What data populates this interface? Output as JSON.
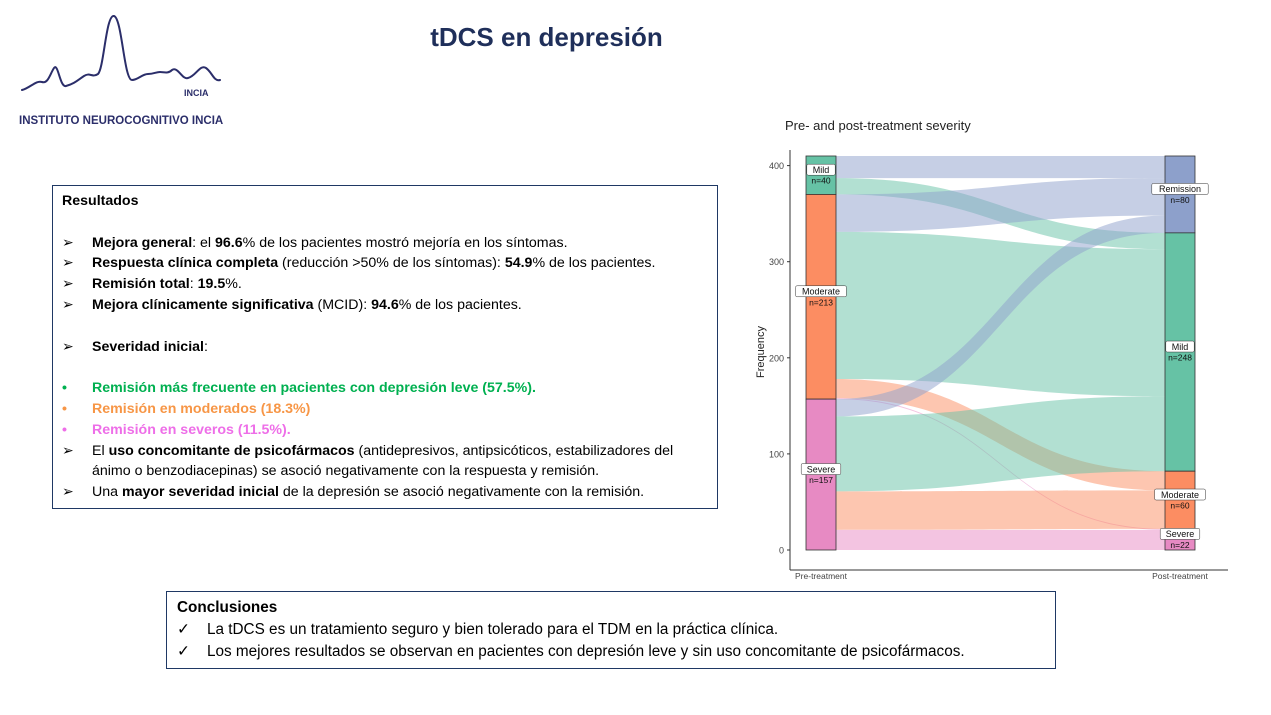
{
  "logo": {
    "abbr": "INCIA",
    "name": "INSTITUTO NEUROCOGNITIVO INCIA",
    "color": "#2b2e6a"
  },
  "slide_title": "tDCS en depresión",
  "results": {
    "heading": "Resultados",
    "items": [
      {
        "b1": "Mejora general",
        "t1": ": el ",
        "b2": "96.6",
        "t2": "% de los pacientes mostró mejoría en los síntomas."
      },
      {
        "b1": "Respuesta clínica completa",
        "t1": " (reducción >50% de los síntomas): ",
        "b2": "54.9",
        "t2": "% de los pacientes."
      },
      {
        "b1": "Remisión total",
        "t1": ": ",
        "b2": "19.5",
        "t2": "%."
      },
      {
        "b1": "Mejora clínicamente significativa",
        "t1": " (MCID): ",
        "b2": "94.6",
        "t2": "% de los pacientes."
      }
    ],
    "severity_heading": "Severidad inicial",
    "severity_colon": ":",
    "sev_items": [
      "Remisión más frecuente en pacientes con depresión leve (57.5%).",
      "Remisión en moderados (18.3%)",
      "Remisión en severos (11.5%)."
    ],
    "psy": {
      "t1": "El ",
      "b1": "uso concomitante de psicofármacos",
      "t2": " (antidepresivos, antipsicóticos, estabilizadores del ánimo o benzodiacepinas) se asoció negativamente con la respuesta y remisión."
    },
    "sev_neg": {
      "t1": "Una ",
      "b1": "mayor severidad inicial",
      "t2": " de la depresión se asoció negativamente con la remisión."
    }
  },
  "conclusions": {
    "heading": "Conclusiones",
    "items": [
      "La tDCS es un tratamiento seguro y bien tolerado para el TDM en la práctica clínica.",
      "Los mejores resultados se observan en pacientes con depresión leve y sin uso concomitante de psicofármacos."
    ]
  },
  "chart_data": {
    "type": "alluvial",
    "title": "Pre- and post-treatment severity",
    "ylabel": "Frequency",
    "xlabel": "",
    "ylim": [
      0,
      410
    ],
    "yticks": [
      0,
      100,
      200,
      300,
      400
    ],
    "axes": [
      "Pre-treatment",
      "Post-treatment"
    ],
    "pre": [
      {
        "name": "Mild",
        "n": 40,
        "n_label": "n=40",
        "color": "#66c2a5"
      },
      {
        "name": "Moderate",
        "n": 213,
        "n_label": "n=213",
        "color": "#fc8d62"
      },
      {
        "name": "Severe",
        "n": 157,
        "n_label": "n=157",
        "color": "#e78ac3"
      }
    ],
    "post": [
      {
        "name": "Remission",
        "n": 80,
        "n_label": "n=80",
        "color": "#8da0cb"
      },
      {
        "name": "Mild",
        "n": 248,
        "n_label": "n=248",
        "color": "#66c2a5"
      },
      {
        "name": "Moderate",
        "n": 60,
        "n_label": "n=60",
        "color": "#fc8d62"
      },
      {
        "name": "Severe",
        "n": 22,
        "n_label": "n=22",
        "color": "#e78ac3"
      }
    ],
    "flows": [
      {
        "from": "Mild",
        "to": "Remission",
        "value": 23
      },
      {
        "from": "Mild",
        "to": "Mild",
        "value": 17
      },
      {
        "from": "Moderate",
        "to": "Remission",
        "value": 39
      },
      {
        "from": "Moderate",
        "to": "Mild",
        "value": 153
      },
      {
        "from": "Moderate",
        "to": "Moderate",
        "value": 20
      },
      {
        "from": "Moderate",
        "to": "Severe",
        "value": 1
      },
      {
        "from": "Severe",
        "to": "Remission",
        "value": 18
      },
      {
        "from": "Severe",
        "to": "Mild",
        "value": 78
      },
      {
        "from": "Severe",
        "to": "Moderate",
        "value": 40
      },
      {
        "from": "Severe",
        "to": "Severe",
        "value": 21
      }
    ]
  }
}
